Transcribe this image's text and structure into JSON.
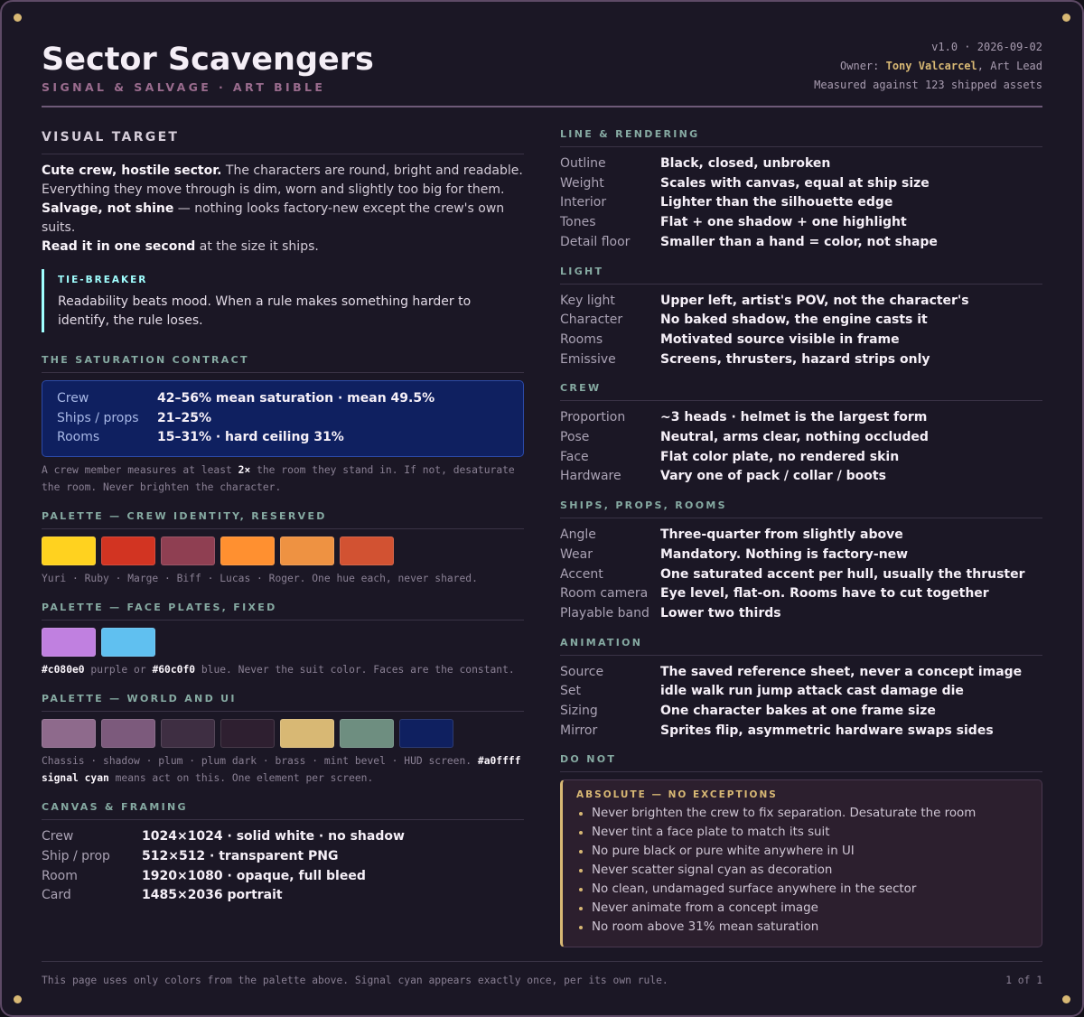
{
  "header": {
    "title": "Sector Scavengers",
    "subtitle": "SIGNAL & SALVAGE · ART BIBLE",
    "version": "v1.0 · 2026-09-02",
    "owner": [
      "Owner: ",
      {
        "b": "Tony Valcarcel"
      },
      ", Art Lead"
    ],
    "measured": "Measured against 123 shipped assets"
  },
  "visual_target": {
    "heading": "VISUAL TARGET",
    "lines": [
      [
        {
          "b": "Cute crew, hostile sector."
        },
        " The characters are round, bright and readable. Everything they move through is dim, worn and slightly too big for them."
      ],
      [
        {
          "b": "Salvage, not shine"
        },
        " — nothing looks factory-new except the crew's own suits."
      ],
      [
        {
          "b": "Read it in one second"
        },
        " at the size it ships."
      ]
    ],
    "callout": {
      "label": "TIE-BREAKER",
      "text": "Readability beats mood. When a rule makes something harder to identify, the rule loses."
    }
  },
  "saturation": {
    "heading": "THE SATURATION CONTRACT",
    "rows": [
      [
        "Crew",
        "42–56% mean saturation · mean 49.5%"
      ],
      [
        "Ships / props",
        "21–25%"
      ],
      [
        "Rooms",
        "15–31% · hard ceiling 31%"
      ]
    ],
    "note": [
      "A crew member measures at least ",
      {
        "b": "2×"
      },
      " the room they stand in. If not, desaturate the room. Never brighten the character."
    ]
  },
  "palettes": [
    {
      "heading": "PALETTE — CREW IDENTITY, RESERVED",
      "colors": [
        "#ffd21f",
        "#d23422",
        "#8f3f52",
        "#ff9030",
        "#ee9242",
        "#d25232"
      ],
      "caption": [
        "Yuri · Ruby · Marge · Biff · Lucas · Roger. One hue each, never shared."
      ]
    },
    {
      "heading": "PALETTE — FACE PLATES, FIXED",
      "colors": [
        "#c080e0",
        "#60c0f0"
      ],
      "caption": [
        {
          "b": "#c080e0"
        },
        " purple or ",
        {
          "b": "#60c0f0"
        },
        " blue. Never the suit color. Faces are the constant."
      ]
    },
    {
      "heading": "PALETTE — WORLD AND UI",
      "colors": [
        "#8e6a8c",
        "#7c5a7c",
        "#3e2e42",
        "#2e1f30",
        "#d8b874",
        "#6e8e80",
        "#0f2060"
      ],
      "caption": [
        "Chassis · shadow · plum · plum dark · brass · mint bevel · HUD screen. ",
        {
          "b": "#a0ffff signal cyan"
        },
        " means act on this. One element per screen."
      ]
    }
  ],
  "canvas": {
    "heading": "CANVAS & FRAMING",
    "rows": [
      [
        "Crew",
        "1024×1024 · solid white · no shadow"
      ],
      [
        "Ship / prop",
        "512×512 · transparent PNG"
      ],
      [
        "Room",
        "1920×1080 · opaque, full bleed"
      ],
      [
        "Card",
        "1485×2036 portrait"
      ]
    ]
  },
  "right_sections": [
    {
      "heading": "LINE & RENDERING",
      "rows": [
        [
          "Outline",
          "Black, closed, unbroken"
        ],
        [
          "Weight",
          "Scales with canvas, equal at ship size"
        ],
        [
          "Interior",
          "Lighter than the silhouette edge"
        ],
        [
          "Tones",
          "Flat + one shadow + one highlight"
        ],
        [
          "Detail floor",
          "Smaller than a hand = color, not shape"
        ]
      ]
    },
    {
      "heading": "LIGHT",
      "rows": [
        [
          "Key light",
          "Upper left, artist's POV, not the character's"
        ],
        [
          "Character",
          "No baked shadow, the engine casts it"
        ],
        [
          "Rooms",
          "Motivated source visible in frame"
        ],
        [
          "Emissive",
          "Screens, thrusters, hazard strips only"
        ]
      ]
    },
    {
      "heading": "CREW",
      "rows": [
        [
          "Proportion",
          "~3 heads · helmet is the largest form"
        ],
        [
          "Pose",
          "Neutral, arms clear, nothing occluded"
        ],
        [
          "Face",
          "Flat color plate, no rendered skin"
        ],
        [
          "Hardware",
          "Vary one of pack / collar / boots"
        ]
      ]
    },
    {
      "heading": "SHIPS, PROPS, ROOMS",
      "rows": [
        [
          "Angle",
          "Three-quarter from slightly above"
        ],
        [
          "Wear",
          "Mandatory. Nothing is factory-new"
        ],
        [
          "Accent",
          "One saturated accent per hull, usually the thruster"
        ],
        [
          "Room camera",
          "Eye level, flat-on. Rooms have to cut together"
        ],
        [
          "Playable band",
          "Lower two thirds"
        ]
      ]
    },
    {
      "heading": "ANIMATION",
      "rows": [
        [
          "Source",
          "The saved reference sheet, never a concept image"
        ],
        [
          "Set",
          "idle walk run jump attack cast damage die"
        ],
        [
          "Sizing",
          "One character bakes at one frame size"
        ],
        [
          "Mirror",
          "Sprites flip, asymmetric hardware swaps sides"
        ]
      ]
    }
  ],
  "do_not": {
    "heading": "DO NOT",
    "label": "ABSOLUTE — NO EXCEPTIONS",
    "items": [
      "Never brighten the crew to fix separation. Desaturate the room",
      "Never tint a face plate to match its suit",
      "No pure black or pure white anywhere in UI",
      "Never scatter signal cyan as decoration",
      "No clean, undamaged surface anywhere in the sector",
      "Never animate from a concept image",
      "No room above 31% mean saturation"
    ]
  },
  "footer": {
    "note": "This page uses only colors from the palette above. Signal cyan appears exactly once, per its own rule.",
    "page": "1 of 1"
  }
}
